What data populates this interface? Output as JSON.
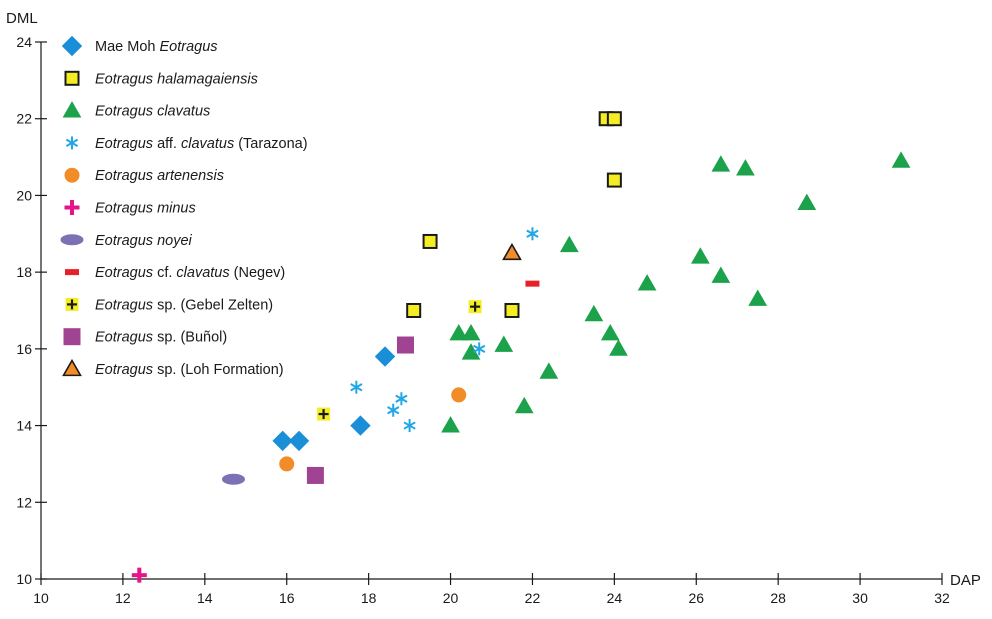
{
  "chart_data": {
    "type": "scatter",
    "xlabel": "DAP",
    "ylabel": "DML",
    "xlim": [
      10,
      32
    ],
    "ylim": [
      10,
      24
    ],
    "xticks": [
      10,
      12,
      14,
      16,
      18,
      20,
      22,
      24,
      26,
      28,
      30,
      32
    ],
    "yticks": [
      10,
      12,
      14,
      16,
      18,
      20,
      22,
      24
    ],
    "grid": false,
    "legend_position": "top-left",
    "series": [
      {
        "id": "mae-moh",
        "legend": [
          {
            "text": "Mae Moh ",
            "italic": false
          },
          {
            "text": "Eotragus",
            "italic": true
          }
        ],
        "marker": "diamond",
        "fill": "#1a8fd8",
        "stroke": "#1a8fd8",
        "points": [
          [
            15.9,
            13.6
          ],
          [
            16.3,
            13.6
          ],
          [
            17.8,
            14.0
          ],
          [
            18.4,
            15.8
          ]
        ]
      },
      {
        "id": "halamagaiensis",
        "legend": [
          {
            "text": "Eotragus halamagaiensis",
            "italic": true
          }
        ],
        "marker": "square-open",
        "fill": "#f5ed24",
        "stroke": "#1a1a1a",
        "points": [
          [
            19.1,
            17.0
          ],
          [
            19.5,
            18.8
          ],
          [
            21.5,
            17.0
          ],
          [
            23.8,
            22.0
          ],
          [
            24.0,
            22.0
          ],
          [
            24.0,
            20.4
          ]
        ]
      },
      {
        "id": "clavatus",
        "legend": [
          {
            "text": "Eotragus clavatus",
            "italic": true
          }
        ],
        "marker": "triangle",
        "fill": "#1ba24a",
        "stroke": "#1ba24a",
        "points": [
          [
            20.0,
            14.0
          ],
          [
            20.2,
            16.4
          ],
          [
            20.5,
            16.4
          ],
          [
            20.5,
            15.9
          ],
          [
            21.3,
            16.1
          ],
          [
            21.8,
            14.5
          ],
          [
            22.4,
            15.4
          ],
          [
            22.9,
            18.7
          ],
          [
            23.5,
            16.9
          ],
          [
            23.9,
            16.4
          ],
          [
            24.1,
            16.0
          ],
          [
            24.8,
            17.7
          ],
          [
            26.1,
            18.4
          ],
          [
            26.6,
            17.9
          ],
          [
            26.6,
            20.8
          ],
          [
            27.2,
            20.7
          ],
          [
            27.5,
            17.3
          ],
          [
            28.7,
            19.8
          ],
          [
            31.0,
            20.9
          ]
        ]
      },
      {
        "id": "aff-clavatus",
        "legend": [
          {
            "text": "Eotragus",
            "italic": true
          },
          {
            "text": " aff. ",
            "italic": false
          },
          {
            "text": "clavatus",
            "italic": true
          },
          {
            "text": " (Tarazona)",
            "italic": false
          }
        ],
        "marker": "asterisk",
        "fill": "none",
        "stroke": "#22a6e6",
        "points": [
          [
            17.7,
            15.0
          ],
          [
            18.6,
            14.4
          ],
          [
            18.8,
            14.7
          ],
          [
            19.0,
            14.0
          ],
          [
            20.7,
            16.0
          ],
          [
            22.0,
            19.0
          ]
        ]
      },
      {
        "id": "artenensis",
        "legend": [
          {
            "text": "Eotragus artenensis",
            "italic": true
          }
        ],
        "marker": "circle",
        "fill": "#f28c28",
        "stroke": "#f28c28",
        "points": [
          [
            16.0,
            13.0
          ],
          [
            20.2,
            14.8
          ]
        ]
      },
      {
        "id": "minus",
        "legend": [
          {
            "text": "Eotragus minus",
            "italic": true
          }
        ],
        "marker": "plus",
        "fill": "#e4148c",
        "stroke": "#e4148c",
        "points": [
          [
            12.4,
            10.1
          ]
        ]
      },
      {
        "id": "noyei",
        "legend": [
          {
            "text": "Eotragus noyei",
            "italic": true
          }
        ],
        "marker": "ellipse",
        "fill": "#7b72b6",
        "stroke": "#7b72b6",
        "points": [
          [
            14.7,
            12.6
          ]
        ]
      },
      {
        "id": "cf-clavatus",
        "legend": [
          {
            "text": "Eotragus",
            "italic": true
          },
          {
            "text": " cf. ",
            "italic": false
          },
          {
            "text": "clavatus",
            "italic": true
          },
          {
            "text": " (Negev)",
            "italic": false
          }
        ],
        "marker": "dash",
        "fill": "#e8202a",
        "stroke": "#e8202a",
        "points": [
          [
            22.0,
            17.7
          ]
        ]
      },
      {
        "id": "gebel-zelten",
        "legend": [
          {
            "text": "Eotragus",
            "italic": true
          },
          {
            "text": " sp. (Gebel Zelten)",
            "italic": false
          }
        ],
        "marker": "square-plus",
        "fill": "#f5ed24",
        "stroke": "#1a1a1a",
        "points": [
          [
            16.9,
            14.3
          ],
          [
            20.6,
            17.1
          ]
        ]
      },
      {
        "id": "bunol",
        "legend": [
          {
            "text": "Eotragus",
            "italic": true
          },
          {
            "text": " sp. (Buñol)",
            "italic": false
          }
        ],
        "marker": "square",
        "fill": "#a14393",
        "stroke": "#a14393",
        "points": [
          [
            16.7,
            12.7
          ],
          [
            18.9,
            16.1
          ]
        ]
      },
      {
        "id": "loh",
        "legend": [
          {
            "text": "Eotragus",
            "italic": true
          },
          {
            "text": " sp. (Loh Formation)",
            "italic": false
          }
        ],
        "marker": "triangle-open",
        "fill": "#f28c28",
        "stroke": "#1a1a1a",
        "points": [
          [
            21.5,
            18.5
          ]
        ]
      }
    ]
  }
}
